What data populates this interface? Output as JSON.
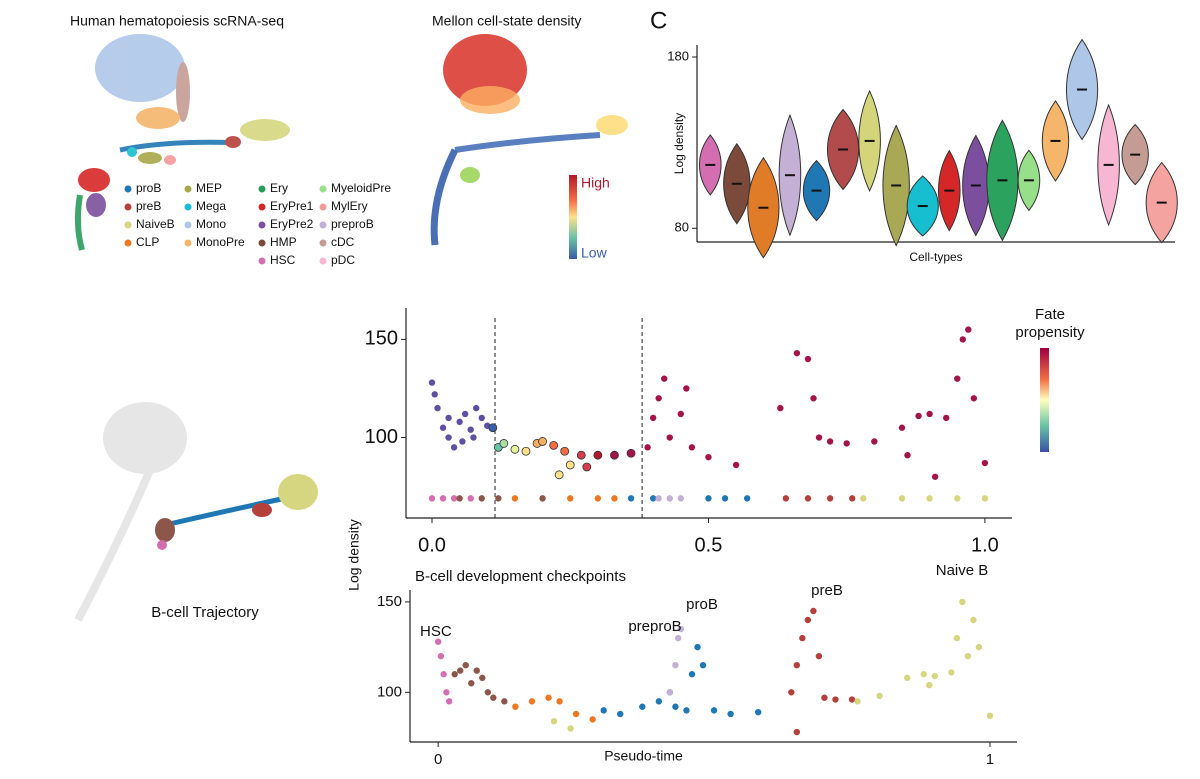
{
  "panel_a": {
    "title": "Human hematopoiesis scRNA-seq",
    "legend": [
      {
        "name": "proB",
        "color": "#1f77b4"
      },
      {
        "name": "preB",
        "color": "#b5403b"
      },
      {
        "name": "NaiveB",
        "color": "#d6d680"
      },
      {
        "name": "CLP",
        "color": "#ee7722"
      },
      {
        "name": "MEP",
        "color": "#a8a84a"
      },
      {
        "name": "Mega",
        "color": "#17becf"
      },
      {
        "name": "Mono",
        "color": "#aec7e8"
      },
      {
        "name": "MonoPre",
        "color": "#f5b56b"
      },
      {
        "name": "Ery",
        "color": "#2a9d5c"
      },
      {
        "name": "EryPre1",
        "color": "#d62728"
      },
      {
        "name": "EryPre2",
        "color": "#7b4f9d"
      },
      {
        "name": "HMP",
        "color": "#7b4a3a"
      },
      {
        "name": "HSC",
        "color": "#d36fb0"
      },
      {
        "name": "MyeloidPre",
        "color": "#98df8a"
      },
      {
        "name": "MylEry",
        "color": "#f49a9a"
      },
      {
        "name": "preproB",
        "color": "#c5b0d5"
      },
      {
        "name": "cDC",
        "color": "#c49c94"
      },
      {
        "name": "pDC",
        "color": "#f7b6d2"
      }
    ]
  },
  "panel_b": {
    "title": "Mellon cell-state density",
    "colorbar_high": "High",
    "colorbar_low": "Low"
  },
  "panel_c_label": "C",
  "trajectory_label": "B-cell Trajectory",
  "chart_data": [
    {
      "type": "violin",
      "xlabel": "Cell-types",
      "ylabel": "Log density",
      "categories": [
        null,
        null,
        null,
        null,
        null,
        null,
        null,
        null,
        null,
        null,
        null,
        null,
        null,
        null,
        null,
        null,
        null,
        null
      ],
      "values": [
        117,
        106,
        92,
        111,
        102,
        126,
        131,
        105,
        93,
        102,
        105,
        108,
        108,
        131,
        161,
        117,
        123,
        95
      ],
      "colors": [
        "#d36fb0",
        "#7b4a3a",
        "#e07b28",
        "#c5b0d5",
        "#1f77b4",
        "#b24b4b",
        "#d4d47a",
        "#a9a955",
        "#17becf",
        "#d62728",
        "#7b4f9d",
        "#2ca25f",
        "#98df8a",
        "#f5b56b",
        "#aec7e8",
        "#f7b6d2",
        "#c49c94",
        "#f4a3a0"
      ],
      "ylim": [
        72,
        187
      ],
      "yticks": [
        80,
        180
      ]
    },
    {
      "type": "scatter",
      "ylabel": "Log density",
      "xlim": [
        -0.047,
        1.049
      ],
      "ylim": [
        59,
        166
      ],
      "xticks": [
        {
          "value": 0,
          "label": "0.0"
        },
        0.5,
        {
          "value": 1,
          "label": "1.0"
        }
      ],
      "yticks": [
        100,
        150
      ],
      "vlines": [
        0.114,
        0.38
      ],
      "colorbar_title": "Fate propensity",
      "series": [
        {
          "color": "#5e4fa2",
          "x": [
            0.0,
            0.005,
            0.01,
            0.02,
            0.03,
            0.04,
            0.05,
            0.06,
            0.07,
            0.08,
            0.09,
            0.1,
            0.03,
            0.055,
            0.075
          ],
          "values": [
            128,
            122,
            115,
            105,
            100,
            95,
            108,
            112,
            104,
            115,
            110,
            106,
            110,
            98,
            100
          ]
        },
        {
          "edgecolor": "#333333",
          "colors": [
            "#3a5fa8",
            "#66c2a5",
            "#abdda4",
            "#e6f598",
            "#fee08b",
            "#fdae61",
            "#fdae61",
            "#f46d43",
            "#f46d43",
            "#fee08b",
            "#d53e4f",
            "#b2182b",
            "#a3154a",
            "#a3154a",
            "#d53e4f",
            "#fee08b"
          ],
          "x": [
            0.11,
            0.12,
            0.13,
            0.15,
            0.17,
            0.19,
            0.2,
            0.22,
            0.24,
            0.25,
            0.27,
            0.3,
            0.33,
            0.36,
            0.28,
            0.23
          ],
          "values": [
            105,
            95,
            97,
            94,
            93,
            97,
            98,
            96,
            93,
            86,
            91,
            91,
            91,
            92,
            85,
            81
          ]
        },
        {
          "color": "#a3154a",
          "x": [
            0.39,
            0.4,
            0.41,
            0.42,
            0.43,
            0.45,
            0.46,
            0.47,
            0.5,
            0.55,
            0.63,
            0.66,
            0.68,
            0.69,
            0.7,
            0.72,
            0.75,
            0.8,
            0.85,
            0.88,
            0.9,
            0.93,
            0.95,
            0.96,
            0.97,
            0.98,
            1.0,
            0.86,
            0.91
          ],
          "values": [
            95,
            110,
            120,
            130,
            100,
            112,
            125,
            95,
            90,
            86,
            115,
            143,
            140,
            120,
            100,
            98,
            97,
            98,
            105,
            111,
            112,
            110,
            130,
            150,
            155,
            120,
            87,
            91,
            80
          ]
        },
        {
          "colors": [
            "#d36fb0",
            "#d36fb0",
            "#d36fb0",
            "#d36fb0",
            "#8c564b",
            "#8c564b",
            "#8c564b",
            "#8c564b",
            "#ee7722",
            "#ee7722",
            "#ee7722",
            "#ee7722",
            "#1f77b4",
            "#1f77b4",
            "#1f77b4",
            "#1f77b4",
            "#1f77b4",
            "#c5b0d5",
            "#c5b0d5",
            "#c5b0d5",
            "#b5403b",
            "#b5403b",
            "#b5403b",
            "#b5403b",
            "#d6d680",
            "#d6d680",
            "#d6d680",
            "#d6d680",
            "#d6d680"
          ],
          "x": [
            0,
            0.02,
            0.04,
            0.07,
            0.05,
            0.09,
            0.12,
            0.2,
            0.15,
            0.25,
            0.3,
            0.33,
            0.36,
            0.4,
            0.5,
            0.53,
            0.57,
            0.41,
            0.43,
            0.45,
            0.64,
            0.68,
            0.72,
            0.76,
            0.78,
            0.85,
            0.9,
            0.95,
            1.0
          ],
          "values": [
            69,
            69,
            69,
            69,
            69,
            69,
            69,
            69,
            69,
            69,
            69,
            69,
            69,
            69,
            69,
            69,
            69,
            69,
            69,
            69,
            69,
            69,
            69,
            69,
            69,
            69,
            69,
            69,
            69
          ]
        }
      ]
    },
    {
      "type": "scatter",
      "title": "B-cell development checkpoints",
      "xlabel": "Pseudo-time",
      "xlim": [
        -0.051,
        1.049
      ],
      "ylim": [
        72.5,
        156.6
      ],
      "xticks": [
        0,
        1
      ],
      "yticks": [
        100,
        150
      ],
      "annotations": [
        "HSC",
        "preproB",
        "proB",
        "preB",
        "Naive B"
      ],
      "series": [
        {
          "color": "#d36fb0",
          "x": [
            0,
            0.005,
            0.01,
            0.015,
            0.02
          ],
          "values": [
            128,
            120,
            110,
            100,
            95
          ]
        },
        {
          "color": "#8c564b",
          "x": [
            0.03,
            0.04,
            0.05,
            0.06,
            0.07,
            0.08,
            0.09,
            0.1,
            0.12
          ],
          "values": [
            110,
            112,
            115,
            105,
            112,
            108,
            100,
            97,
            95
          ]
        },
        {
          "color": "#ee7722",
          "x": [
            0.14,
            0.17,
            0.2,
            0.22,
            0.25,
            0.28
          ],
          "values": [
            92,
            95,
            97,
            95,
            88,
            85
          ]
        },
        {
          "color": "#d6d680",
          "x": [
            0.21,
            0.24
          ],
          "values": [
            84,
            80
          ]
        },
        {
          "color": "#1f77b4",
          "x": [
            0.3,
            0.33,
            0.37,
            0.4,
            0.42,
            0.43,
            0.45,
            0.46,
            0.47,
            0.48,
            0.5,
            0.53,
            0.58
          ],
          "values": [
            90,
            88,
            92,
            95,
            100,
            92,
            90,
            110,
            125,
            115,
            90,
            88,
            89
          ]
        },
        {
          "color": "#c5b0d5",
          "x": [
            0.42,
            0.43,
            0.435,
            0.44
          ],
          "values": [
            100,
            115,
            130,
            135
          ]
        },
        {
          "color": "#b5403b",
          "x": [
            0.64,
            0.65,
            0.66,
            0.67,
            0.68,
            0.69,
            0.7,
            0.72,
            0.75,
            0.65
          ],
          "values": [
            100,
            115,
            130,
            140,
            145,
            120,
            97,
            96,
            96,
            78
          ]
        },
        {
          "color": "#d6d680",
          "x": [
            0.76,
            0.8,
            0.85,
            0.88,
            0.9,
            0.93,
            0.94,
            0.95,
            0.96,
            0.97,
            0.98,
            1.0,
            0.89
          ],
          "values": [
            95,
            98,
            108,
            110,
            109,
            111,
            130,
            150,
            120,
            140,
            125,
            87,
            104
          ]
        }
      ]
    }
  ]
}
